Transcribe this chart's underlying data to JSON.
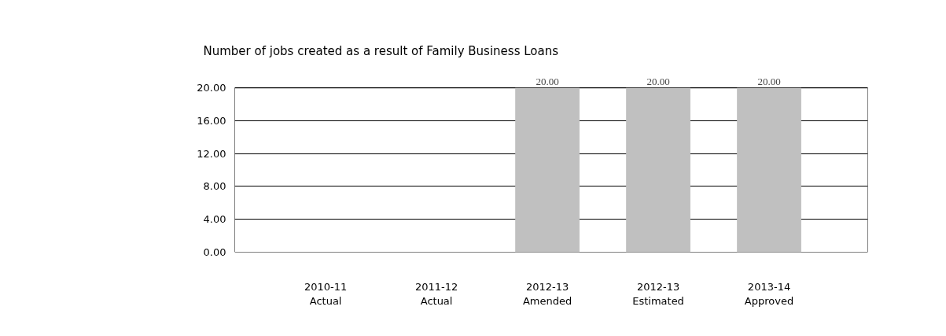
{
  "chart_data": {
    "type": "bar",
    "title": "Number of jobs created as a result of Family Business Loans",
    "categories": [
      "2010-11\nActual",
      "2011-12\nActual",
      "2012-13\nAmended",
      "2012-13\nEstimated",
      "2013-14\nApproved"
    ],
    "values": [
      null,
      null,
      20,
      20,
      20
    ],
    "value_labels": [
      null,
      null,
      "20.00",
      "20.00",
      "20.00"
    ],
    "color": "#c0c0c0",
    "ylim": [
      0,
      20
    ],
    "yticks": [
      {
        "value": 0,
        "label": "0.00"
      },
      {
        "value": 4,
        "label": "4.00"
      },
      {
        "value": 8,
        "label": "8.00"
      },
      {
        "value": 12,
        "label": "12.00"
      },
      {
        "value": 16,
        "label": "16.00"
      },
      {
        "value": 20,
        "label": "20.00"
      }
    ],
    "grid": "y"
  }
}
